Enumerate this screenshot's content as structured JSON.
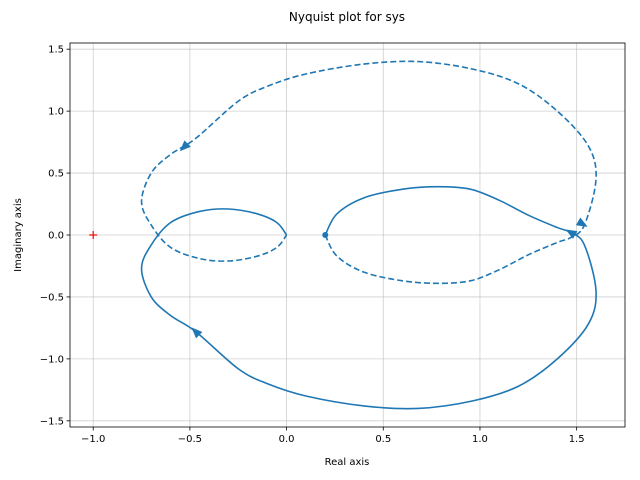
{
  "chart_data": {
    "type": "line",
    "title": "Nyquist plot for sys",
    "xlabel": "Real axis",
    "ylabel": "Imaginary axis",
    "xlim": [
      -1.12,
      1.75
    ],
    "ylim": [
      -1.55,
      1.55
    ],
    "xticks": [
      -1.0,
      -0.5,
      0.0,
      0.5,
      1.0,
      1.5
    ],
    "xtick_labels": [
      "−1.0",
      "−0.5",
      "0.0",
      "0.5",
      "1.0",
      "1.5"
    ],
    "yticks": [
      -1.5,
      -1.0,
      -0.5,
      0.0,
      0.5,
      1.0,
      1.5
    ],
    "ytick_labels": [
      "−1.5",
      "−1.0",
      "−0.5",
      "0.0",
      "0.5",
      "1.0",
      "1.5"
    ],
    "grid": true,
    "line_color": "#1f77b4",
    "critical_point_color": "#ff0000",
    "critical_point": {
      "x": -1.0,
      "y": 0.0
    },
    "start_point": {
      "x": 0.2,
      "y": 0.0
    },
    "series": [
      {
        "style": "solid",
        "points": [
          [
            0.2,
            0.0
          ],
          [
            0.26,
            0.17
          ],
          [
            0.4,
            0.3
          ],
          [
            0.6,
            0.37
          ],
          [
            0.78,
            0.39
          ],
          [
            0.95,
            0.37
          ],
          [
            1.1,
            0.28
          ],
          [
            1.25,
            0.16
          ],
          [
            1.4,
            0.06
          ],
          [
            1.47,
            0.02
          ],
          [
            1.54,
            -0.08
          ],
          [
            1.6,
            -0.45
          ],
          [
            1.56,
            -0.72
          ],
          [
            1.4,
            -1.0
          ],
          [
            1.2,
            -1.22
          ],
          [
            0.96,
            -1.34
          ],
          [
            0.68,
            -1.4
          ],
          [
            0.4,
            -1.38
          ],
          [
            0.1,
            -1.3
          ],
          [
            -0.1,
            -1.2
          ],
          [
            -0.25,
            -1.08
          ],
          [
            -0.47,
            -0.78
          ],
          [
            -0.6,
            -0.65
          ],
          [
            -0.7,
            -0.5
          ],
          [
            -0.75,
            -0.27
          ],
          [
            -0.7,
            -0.08
          ],
          [
            -0.6,
            0.1
          ],
          [
            -0.45,
            0.19
          ],
          [
            -0.3,
            0.21
          ],
          [
            -0.15,
            0.17
          ],
          [
            -0.05,
            0.1
          ],
          [
            0.0,
            0.0
          ]
        ]
      },
      {
        "style": "dashed",
        "points": [
          [
            0.2,
            0.0
          ],
          [
            0.26,
            -0.17
          ],
          [
            0.4,
            -0.3
          ],
          [
            0.6,
            -0.37
          ],
          [
            0.78,
            -0.39
          ],
          [
            0.95,
            -0.37
          ],
          [
            1.1,
            -0.28
          ],
          [
            1.25,
            -0.16
          ],
          [
            1.4,
            -0.06
          ],
          [
            1.47,
            -0.02
          ],
          [
            1.54,
            0.08
          ],
          [
            1.6,
            0.45
          ],
          [
            1.56,
            0.72
          ],
          [
            1.4,
            1.0
          ],
          [
            1.2,
            1.22
          ],
          [
            0.96,
            1.34
          ],
          [
            0.68,
            1.4
          ],
          [
            0.4,
            1.38
          ],
          [
            0.1,
            1.3
          ],
          [
            -0.1,
            1.2
          ],
          [
            -0.25,
            1.08
          ],
          [
            -0.47,
            0.78
          ],
          [
            -0.6,
            0.65
          ],
          [
            -0.7,
            0.5
          ],
          [
            -0.75,
            0.27
          ],
          [
            -0.7,
            0.08
          ],
          [
            -0.6,
            -0.1
          ],
          [
            -0.45,
            -0.19
          ],
          [
            -0.3,
            -0.21
          ],
          [
            -0.15,
            -0.17
          ],
          [
            -0.05,
            -0.1
          ],
          [
            0.0,
            0.0
          ]
        ]
      }
    ],
    "arrows": [
      {
        "x": -0.47,
        "y": -0.78,
        "dx": -0.13,
        "dy": 0.13
      },
      {
        "x": 1.47,
        "y": 0.02,
        "dx": -0.07,
        "dy": 0.04
      },
      {
        "x": -0.53,
        "y": 0.71,
        "dx": -0.13,
        "dy": -0.13
      },
      {
        "x": 1.53,
        "y": 0.09,
        "dx": 0.07,
        "dy": -0.04
      }
    ]
  }
}
